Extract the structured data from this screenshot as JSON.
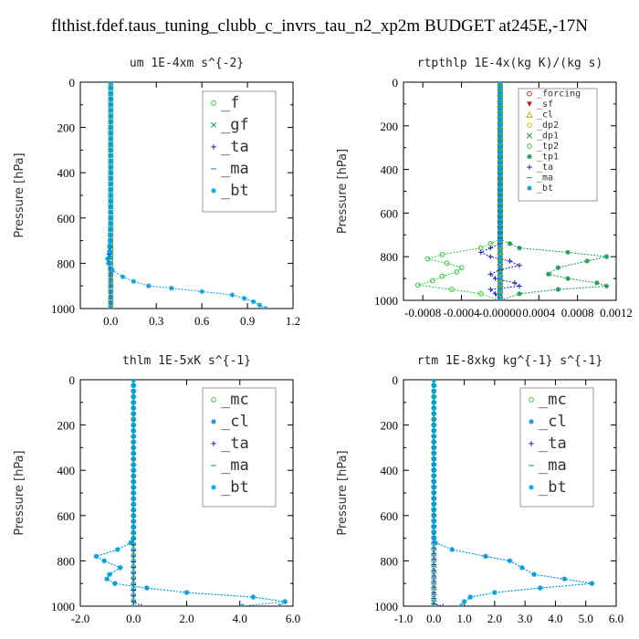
{
  "page_title": "flthist.fdef.taus_tuning_clubb_c_invrs_tau_n2_xp2m  BUDGET at245E,-17N",
  "chart_data": [
    {
      "type": "line",
      "title": "um   1E-4xm s^{-2}",
      "ylabel": "Pressure [hPa]",
      "xlim": [
        -0.2,
        1.2
      ],
      "ylim": [
        1000,
        0
      ],
      "xticks": [
        "0.0",
        "0.3",
        "0.6",
        "0.9",
        "1.2"
      ],
      "xtick_values": [
        0,
        0.3,
        0.6,
        0.9,
        1.2
      ],
      "yticks": [
        "0",
        "200",
        "400",
        "600",
        "800",
        "1000"
      ],
      "ytick_values": [
        0,
        200,
        400,
        600,
        800,
        1000
      ],
      "legend_position": "top-right",
      "series": [
        {
          "name": "_f",
          "color": "#2ecc40",
          "marker": "o",
          "p": [
            0,
            100,
            200,
            300,
            400,
            500,
            600,
            700,
            800,
            900,
            1000
          ],
          "values": [
            0,
            0,
            0,
            0,
            0,
            0,
            0,
            0,
            0,
            0,
            0
          ]
        },
        {
          "name": "_gf",
          "color": "#1a8a7a",
          "marker": "x",
          "p": [
            0,
            100,
            200,
            300,
            400,
            500,
            600,
            700,
            800,
            900,
            1000
          ],
          "values": [
            0,
            0,
            0,
            0,
            0,
            0,
            0,
            0,
            0,
            0,
            0
          ]
        },
        {
          "name": "_ta",
          "color": "#2020c0",
          "marker": "+",
          "p": [
            0,
            700,
            760,
            780,
            800,
            850,
            1000
          ],
          "values": [
            0,
            0,
            -0.01,
            -0.02,
            -0.01,
            0,
            0
          ]
        },
        {
          "name": "_ma",
          "color": "#3399cc",
          "marker": "-",
          "p": [
            0,
            1000
          ],
          "values": [
            0,
            0
          ]
        },
        {
          "name": "_bt",
          "color": "#00a0e0",
          "marker": "*",
          "p": [
            0,
            200,
            400,
            600,
            700,
            750,
            780,
            800,
            830,
            860,
            880,
            900,
            910,
            925,
            940,
            955,
            970,
            985,
            1000
          ],
          "values": [
            0,
            0,
            0,
            0,
            -0.005,
            -0.01,
            -0.02,
            -0.015,
            0.01,
            0.08,
            0.15,
            0.25,
            0.4,
            0.6,
            0.8,
            0.88,
            0.94,
            0.98,
            1.02
          ]
        }
      ]
    },
    {
      "type": "line",
      "title": "rtpthlp   1E-4x(kg K)/(kg s)",
      "ylabel": "Pressure [hPa]",
      "xlim": [
        -0.001,
        0.0012
      ],
      "ylim": [
        1000,
        0
      ],
      "xticks": [
        "-0.0008",
        "-0.0004",
        "-0.00000",
        "0.0004",
        "0.0008",
        "0.0012"
      ],
      "xtick_values": [
        -0.0008,
        -0.0004,
        0,
        0.0004,
        0.0008,
        0.0012
      ],
      "yticks": [
        "0",
        "200",
        "400",
        "600",
        "800",
        "1000"
      ],
      "ytick_values": [
        0,
        200,
        400,
        600,
        800,
        1000
      ],
      "legend_position": "top-right",
      "series": [
        {
          "name": "_forcing",
          "color": "#e02020",
          "marker": "o",
          "p": [
            0,
            1000
          ],
          "values": [
            0,
            0
          ]
        },
        {
          "name": "_sf",
          "color": "#c01010",
          "marker": "v",
          "p": [
            0,
            1000
          ],
          "values": [
            0,
            0
          ]
        },
        {
          "name": "_cl",
          "color": "#e0a000",
          "marker": "^",
          "p": [
            0,
            1000
          ],
          "values": [
            0,
            0
          ]
        },
        {
          "name": "_dp2",
          "color": "#e0c000",
          "marker": "o",
          "p": [
            0,
            1000
          ],
          "values": [
            0,
            0
          ]
        },
        {
          "name": "_dp1",
          "color": "#1a8a40",
          "marker": "x",
          "p": [
            0,
            1000
          ],
          "values": [
            0,
            0
          ]
        },
        {
          "name": "_tp2",
          "color": "#2ecc40",
          "marker": "o",
          "p": [
            0,
            720,
            760,
            790,
            810,
            830,
            850,
            870,
            890,
            910,
            930,
            950,
            970,
            1000
          ],
          "values": [
            0,
            0,
            -0.0002,
            -0.0006,
            -0.00075,
            -0.00055,
            -0.0004,
            -0.00045,
            -0.0006,
            -0.0007,
            -0.00085,
            -0.0005,
            -0.0002,
            0
          ]
        },
        {
          "name": "_tp1",
          "color": "#1a9a50",
          "marker": "*",
          "p": [
            0,
            720,
            760,
            780,
            800,
            820,
            850,
            880,
            900,
            920,
            935,
            950,
            970,
            1000
          ],
          "values": [
            0,
            0,
            0.0002,
            0.0007,
            0.0011,
            0.0009,
            0.0006,
            0.0005,
            0.0007,
            0.001,
            0.0011,
            0.0006,
            0.0002,
            0
          ]
        },
        {
          "name": "_ta",
          "color": "#2020c0",
          "marker": "+",
          "p": [
            0,
            740,
            760,
            780,
            800,
            820,
            840,
            860,
            880,
            900,
            920,
            935,
            950,
            970,
            1000
          ],
          "values": [
            0,
            0,
            -0.0001,
            -0.0002,
            -0.0001,
            0.0001,
            0.0002,
            0,
            -0.0001,
            -5e-05,
            0.00015,
            0.0002,
            -0.0001,
            -5e-05,
            0
          ]
        },
        {
          "name": "_ma",
          "color": "#3399cc",
          "marker": "-",
          "p": [
            0,
            1000
          ],
          "values": [
            0,
            0
          ]
        },
        {
          "name": "_bt",
          "color": "#00a0e0",
          "marker": "*",
          "p": [
            0,
            1000
          ],
          "values": [
            0,
            0
          ]
        }
      ]
    },
    {
      "type": "line",
      "title": "thlm   1E-5xK s^{-1}",
      "ylabel": "Pressure [hPa]",
      "xlim": [
        -2,
        6
      ],
      "ylim": [
        1000,
        0
      ],
      "xticks": [
        "-2.0",
        "0.0",
        "2.0",
        "4.0",
        "6.0"
      ],
      "xtick_values": [
        -2,
        0,
        2,
        4,
        6
      ],
      "yticks": [
        "0",
        "200",
        "400",
        "600",
        "800",
        "1000"
      ],
      "ytick_values": [
        0,
        200,
        400,
        600,
        800,
        1000
      ],
      "legend_position": "top-right",
      "series": [
        {
          "name": "_mc",
          "color": "#2ecc40",
          "marker": "o",
          "p": [
            0,
            100,
            200,
            300,
            400,
            500,
            600,
            700,
            800,
            900,
            1000
          ],
          "values": [
            0,
            0,
            0,
            0,
            0,
            0,
            0,
            0,
            0,
            0,
            0
          ]
        },
        {
          "name": "_cl",
          "color": "#1a8acc",
          "marker": "*",
          "p": [
            0,
            200,
            400,
            600,
            700,
            720,
            750,
            780,
            800,
            830,
            860,
            880,
            900,
            920,
            940,
            960,
            980,
            1000
          ],
          "values": [
            0,
            0,
            0,
            0,
            0,
            -0.1,
            -0.6,
            -1.4,
            -1.1,
            -0.5,
            -0.9,
            -1.0,
            -0.7,
            0.5,
            2.0,
            4.5,
            5.7,
            5.5
          ]
        },
        {
          "name": "_ta",
          "color": "#2020c0",
          "marker": "+",
          "p": [
            0,
            980,
            1000
          ],
          "values": [
            0,
            0,
            0.3
          ]
        },
        {
          "name": "_ma",
          "color": "#3399cc",
          "marker": "-",
          "p": [
            0,
            1000
          ],
          "values": [
            0,
            0
          ]
        },
        {
          "name": "_bt",
          "color": "#00a0e0",
          "marker": "*",
          "p": [
            0,
            200,
            400,
            600,
            700,
            720,
            750,
            780,
            800,
            830,
            860,
            880,
            900,
            920,
            940,
            960,
            980,
            1000
          ],
          "values": [
            0,
            0,
            0,
            0,
            0,
            -0.1,
            -0.6,
            -1.4,
            -1.1,
            -0.5,
            -0.9,
            -1.0,
            -0.7,
            0.5,
            2.0,
            4.5,
            5.7,
            4.1
          ]
        }
      ]
    },
    {
      "type": "line",
      "title": "rtm   1E-8xkg kg^{-1} s^{-1}",
      "ylabel": "Pressure [hPa]",
      "xlim": [
        -1,
        6
      ],
      "ylim": [
        1000,
        0
      ],
      "xticks": [
        "-1.0",
        "0.0",
        "1.0",
        "2.0",
        "3.0",
        "4.0",
        "5.0",
        "6.0"
      ],
      "xtick_values": [
        -1,
        0,
        1,
        2,
        3,
        4,
        5,
        6
      ],
      "yticks": [
        "0",
        "200",
        "400",
        "600",
        "800",
        "1000"
      ],
      "ytick_values": [
        0,
        200,
        400,
        600,
        800,
        1000
      ],
      "legend_position": "top-right",
      "series": [
        {
          "name": "_mc",
          "color": "#2ecc40",
          "marker": "o",
          "p": [
            0,
            100,
            200,
            300,
            400,
            500,
            600,
            700,
            800,
            900,
            1000
          ],
          "values": [
            0,
            0,
            0,
            0,
            0,
            0,
            0,
            0,
            0,
            0,
            0
          ]
        },
        {
          "name": "_cl",
          "color": "#1a8acc",
          "marker": "*",
          "p": [
            0,
            200,
            400,
            600,
            700,
            720,
            750,
            780,
            800,
            830,
            860,
            880,
            900,
            920,
            940,
            960,
            980,
            1000
          ],
          "values": [
            0,
            0,
            0,
            0,
            0,
            0.05,
            0.6,
            1.7,
            2.5,
            2.9,
            3.3,
            4.3,
            5.2,
            3.5,
            2.0,
            1.2,
            1.0,
            0.9
          ]
        },
        {
          "name": "_ta",
          "color": "#2020c0",
          "marker": "+",
          "p": [
            0,
            990,
            1000
          ],
          "values": [
            0,
            0,
            0.3
          ]
        },
        {
          "name": "_ma",
          "color": "#3399cc",
          "marker": "-",
          "p": [
            0,
            1000
          ],
          "values": [
            0,
            0
          ]
        },
        {
          "name": "_bt",
          "color": "#00a0e0",
          "marker": "*",
          "p": [
            0,
            200,
            400,
            600,
            700,
            720,
            750,
            780,
            800,
            830,
            860,
            880,
            900,
            920,
            940,
            960,
            980,
            1000
          ],
          "values": [
            0,
            0,
            0,
            0,
            0,
            0.05,
            0.6,
            1.7,
            2.5,
            2.9,
            3.3,
            4.3,
            5.2,
            3.5,
            2.0,
            1.2,
            1.0,
            0.9
          ]
        }
      ]
    }
  ]
}
